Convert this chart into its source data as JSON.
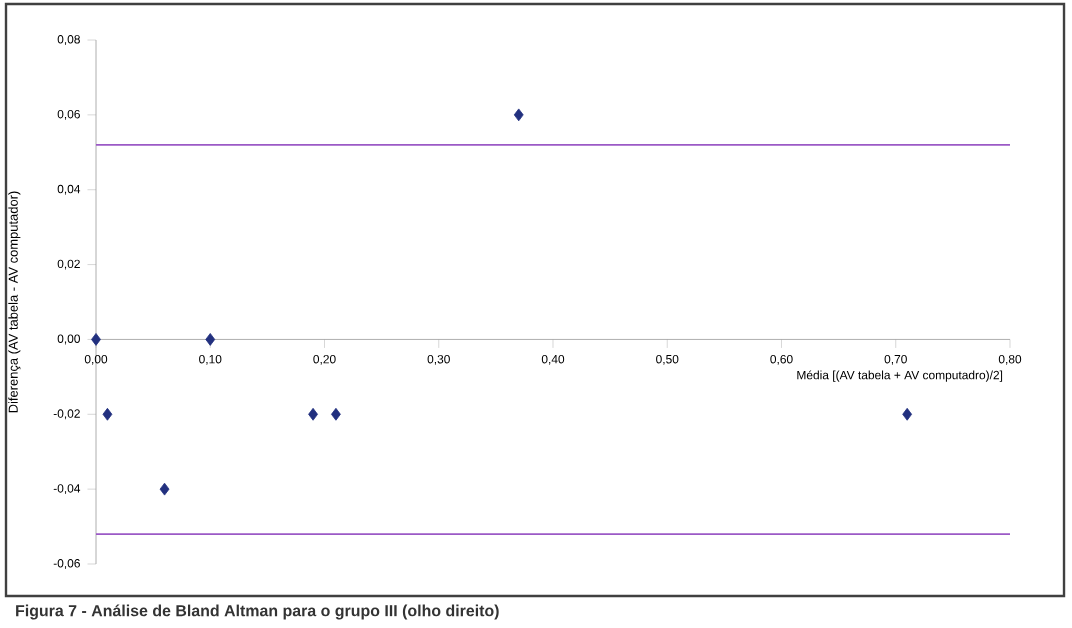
{
  "chart_data": {
    "type": "scatter",
    "xlabel": "Média [(AV tabela + AV computadro)/2]",
    "ylabel": "Diferença (AV tabela - AV computador)",
    "annotations": [
      "Figura 7 - Análise de Bland Altman para o grupo III (olho direito)"
    ],
    "x": [
      0,
      0.01,
      0.06,
      0.1,
      0.19,
      0.21,
      0.37,
      0.71
    ],
    "values": [
      0,
      -0.02,
      -0.04,
      0,
      -0.02,
      -0.02,
      0.06,
      -0.02
    ],
    "color": "#22307f",
    "marker": "diamond",
    "grid": false,
    "xlim": [
      0,
      0.8
    ],
    "ylim": [
      -0.06,
      0.08
    ],
    "xticks": [
      {
        "value": 0,
        "label": "0,00"
      },
      {
        "value": 0.1,
        "label": "0,10"
      },
      {
        "value": 0.2,
        "label": "0,20"
      },
      {
        "value": 0.3,
        "label": "0,30"
      },
      {
        "value": 0.4,
        "label": "0,40"
      },
      {
        "value": 0.5,
        "label": "0,50"
      },
      {
        "value": 0.6,
        "label": "0,60"
      },
      {
        "value": 0.7,
        "label": "0,70"
      },
      {
        "value": 0.8,
        "label": "0,80"
      }
    ],
    "yticks": [
      {
        "value": -0.06,
        "label": "-0,06"
      },
      {
        "value": -0.04,
        "label": "-0,04"
      },
      {
        "value": -0.02,
        "label": "-0,02"
      },
      {
        "value": 0,
        "label": "0,00"
      },
      {
        "value": 0.02,
        "label": "0,02"
      },
      {
        "value": 0.04,
        "label": "0,04"
      },
      {
        "value": 0.06,
        "label": "0,06"
      },
      {
        "value": 0.08,
        "label": "0,08"
      }
    ],
    "ref_lines": [
      {
        "axis": "y",
        "value": 0.052,
        "color": "#9b59c6"
      },
      {
        "axis": "y",
        "value": -0.052,
        "color": "#9b59c6"
      }
    ]
  }
}
